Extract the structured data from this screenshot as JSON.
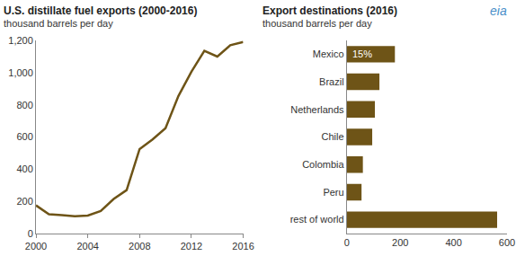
{
  "chart_data": [
    {
      "type": "line",
      "title": "U.S. distillate fuel exports (2000-2016)",
      "subtitle": "thousand barrels per day",
      "x": [
        2000,
        2001,
        2002,
        2003,
        2004,
        2005,
        2006,
        2007,
        2008,
        2009,
        2010,
        2011,
        2012,
        2013,
        2014,
        2015,
        2016
      ],
      "values": [
        175,
        120,
        115,
        108,
        112,
        140,
        215,
        270,
        525,
        585,
        655,
        855,
        1005,
        1135,
        1100,
        1170,
        1190
      ],
      "color": "#6e5417",
      "xlim": [
        2000,
        2016
      ],
      "xticks": [
        2000,
        2004,
        2008,
        2012,
        2016
      ],
      "ylim": [
        0,
        1200
      ],
      "yticks": [
        0,
        200,
        400,
        600,
        800,
        {
          "value": 1000,
          "label": "1,000"
        },
        {
          "value": 1200,
          "label": "1,200"
        }
      ],
      "grid": false
    },
    {
      "type": "bar",
      "orientation": "horizontal",
      "title": "Export destinations (2016)",
      "subtitle": "thousand barrels per day",
      "categories": [
        "Mexico",
        "Brazil",
        "Netherlands",
        "Chile",
        "Colombia",
        "Peru",
        "rest of world"
      ],
      "values": [
        180,
        122,
        105,
        95,
        60,
        55,
        563
      ],
      "color": "#6e5417",
      "xlim": [
        0,
        600
      ],
      "xticks": [
        0,
        200,
        400,
        600
      ],
      "grid": false,
      "annotations": [
        {
          "text": "15%",
          "category": "Mexico"
        }
      ]
    }
  ],
  "logo": "eia"
}
